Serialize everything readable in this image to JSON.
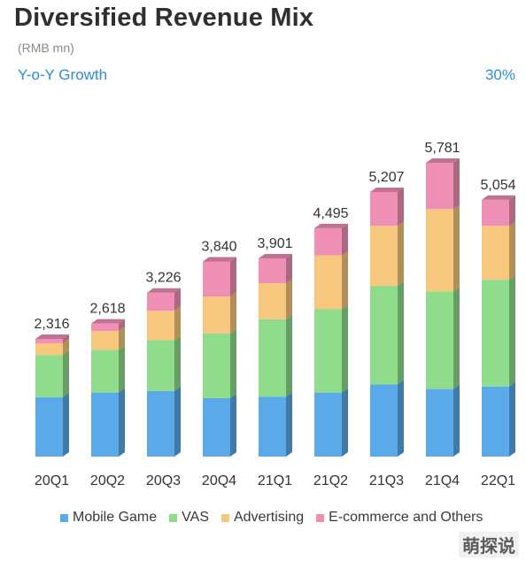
{
  "header": {
    "title": "Diversified Revenue Mix",
    "unit": "(RMB mn)",
    "growth_label": "Y-o-Y Growth",
    "growth_value": "30%"
  },
  "chart_data": {
    "type": "bar",
    "stacked": true,
    "style": "3d",
    "categories": [
      "20Q1",
      "20Q2",
      "20Q3",
      "20Q4",
      "21Q1",
      "21Q2",
      "21Q3",
      "21Q4",
      "22Q1"
    ],
    "total_labels": [
      "2,316",
      "2,618",
      "3,226",
      "3,840",
      "3,901",
      "4,495",
      "5,207",
      "5,781",
      "5,054"
    ],
    "totals": [
      2316,
      2618,
      3226,
      3840,
      3901,
      4495,
      5207,
      5781,
      5054
    ],
    "series": [
      {
        "name": "Mobile Game",
        "color": "#5aa9e8",
        "values": [
          1170,
          1260,
          1290,
          1150,
          1180,
          1260,
          1420,
          1330,
          1380
        ]
      },
      {
        "name": "VAS",
        "color": "#8fdc8c",
        "values": [
          830,
          840,
          1000,
          1270,
          1520,
          1640,
          1940,
          1920,
          2100
        ]
      },
      {
        "name": "Advertising",
        "color": "#f6c77c",
        "values": [
          230,
          370,
          580,
          730,
          710,
          1060,
          1180,
          1620,
          1060
        ]
      },
      {
        "name": "E-commerce and Others",
        "color": "#ef8fb5",
        "values": [
          86,
          148,
          356,
          690,
          491,
          535,
          667,
          911,
          514
        ]
      }
    ],
    "ylim": [
      0,
      6000
    ],
    "grid": false,
    "legend": "bottom"
  },
  "watermark": "萌探说"
}
